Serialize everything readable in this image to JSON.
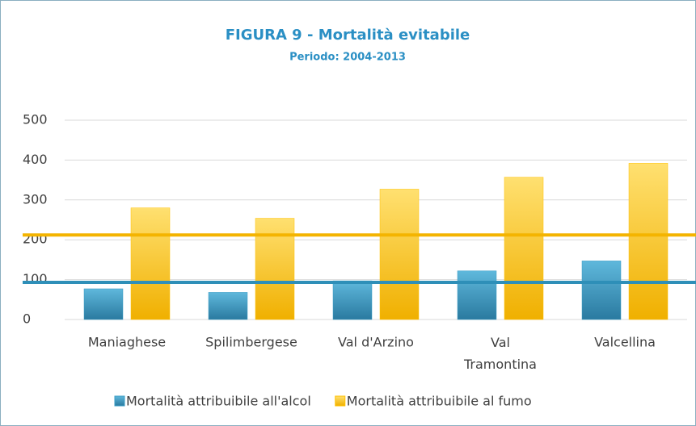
{
  "chart_data": {
    "type": "bar",
    "title": "FIGURA 9 - Mortalità evitabile",
    "subtitle": "Periodo: 2004-2013",
    "categories": [
      "Maniaghese",
      "Spilimbergese",
      "Val d'Arzino",
      "Val Tramontina",
      "Valcellina"
    ],
    "series": [
      {
        "name": "Mortalità attribuibile all'alcol",
        "color": "#3a9cc4",
        "values": [
          77,
          68,
          97,
          122,
          147
        ]
      },
      {
        "name": "Mortalità attribuibile al fumo",
        "color": "#ffc000",
        "values": [
          280,
          254,
          327,
          357,
          392
        ]
      }
    ],
    "reference_lines": [
      {
        "color": "#f4b400",
        "value": 212
      },
      {
        "color": "#2e8fb8",
        "value": 93
      }
    ],
    "ylim": [
      0,
      500
    ],
    "yticks": [
      0,
      100,
      200,
      300,
      400,
      500
    ],
    "grid": true,
    "legend": "bottom"
  }
}
